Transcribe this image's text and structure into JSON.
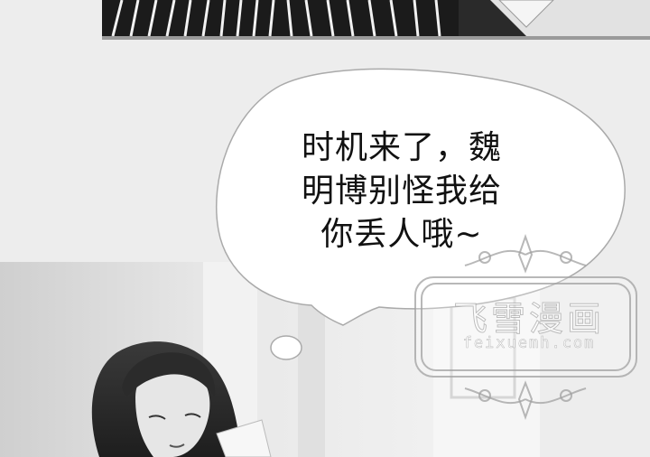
{
  "speech_bubble": {
    "lines": [
      "时机来了，魏",
      "明博别怪我给",
      "你丢人哦~"
    ]
  },
  "watermark": {
    "title": "飞雪漫画",
    "url": "feixuemh.com"
  }
}
